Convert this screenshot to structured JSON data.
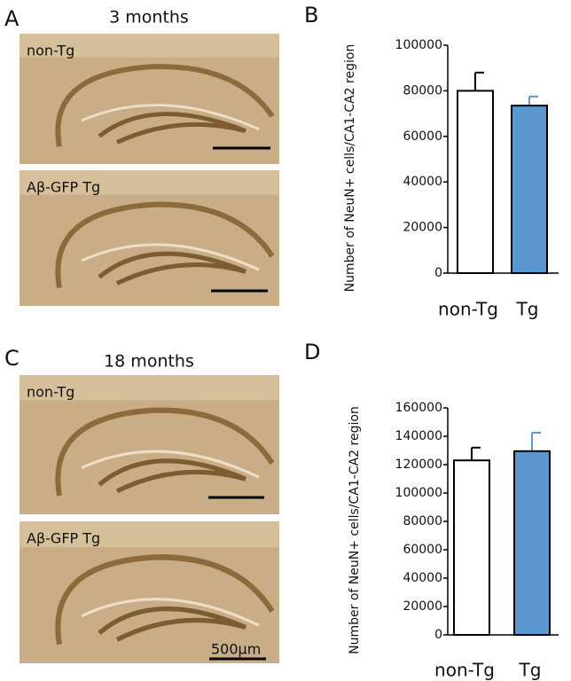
{
  "letters": [
    "A",
    "B",
    "C",
    "D"
  ],
  "rows": [
    {
      "title": "3 months",
      "images": [
        "non-Tg",
        "Aβ-GFP Tg"
      ]
    },
    {
      "title": "18 months",
      "images": [
        "non-Tg",
        "Aβ-GFP Tg"
      ],
      "scale_bar": "500µm"
    }
  ],
  "chart_data": [
    {
      "type": "bar",
      "ylabel": "Number of NeuN+ cells/CA1-CA2 region",
      "categories": [
        "non-Tg",
        "Tg"
      ],
      "values": [
        80000,
        73500
      ],
      "errors": [
        8000,
        4000
      ],
      "colors": [
        "#ffffff",
        "#5b96cf"
      ],
      "ylim": [
        0,
        100000
      ],
      "yticks": [
        0,
        20000,
        40000,
        60000,
        80000,
        100000
      ]
    },
    {
      "type": "bar",
      "ylabel": "Number of NeuN+ cells/CA1-CA2 region",
      "categories": [
        "non-Tg",
        "Tg"
      ],
      "values": [
        123000,
        129500
      ],
      "errors": [
        9000,
        13000
      ],
      "colors": [
        "#ffffff",
        "#5b96cf"
      ],
      "ylim": [
        0,
        160000
      ],
      "yticks": [
        0,
        20000,
        40000,
        60000,
        80000,
        100000,
        120000,
        140000,
        160000
      ]
    }
  ]
}
